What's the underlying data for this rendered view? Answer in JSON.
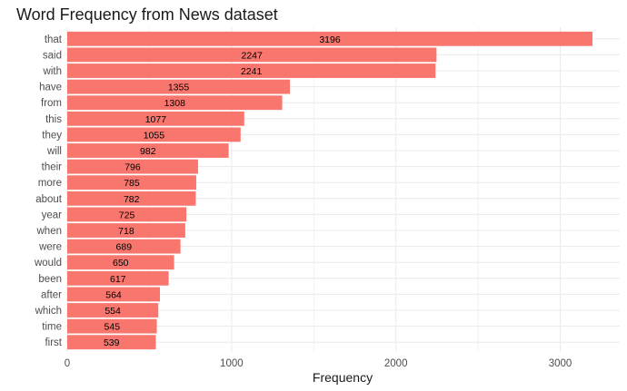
{
  "chart_data": {
    "type": "bar",
    "orientation": "horizontal",
    "title": "Word Frequency from News dataset",
    "xlabel": "Frequency",
    "ylabel": "",
    "categories": [
      "that",
      "said",
      "with",
      "have",
      "from",
      "this",
      "they",
      "will",
      "their",
      "more",
      "about",
      "year",
      "when",
      "were",
      "would",
      "been",
      "after",
      "which",
      "time",
      "first"
    ],
    "values": [
      3196,
      2247,
      2241,
      1355,
      1308,
      1077,
      1055,
      982,
      796,
      785,
      782,
      725,
      718,
      689,
      650,
      617,
      564,
      554,
      545,
      539
    ],
    "xlim": [
      0,
      3300
    ],
    "xticks": [
      0,
      1000,
      2000,
      3000
    ],
    "grid": true,
    "legend": "none",
    "bar_color": "#F8766D",
    "grid_color": "#ebebeb"
  }
}
